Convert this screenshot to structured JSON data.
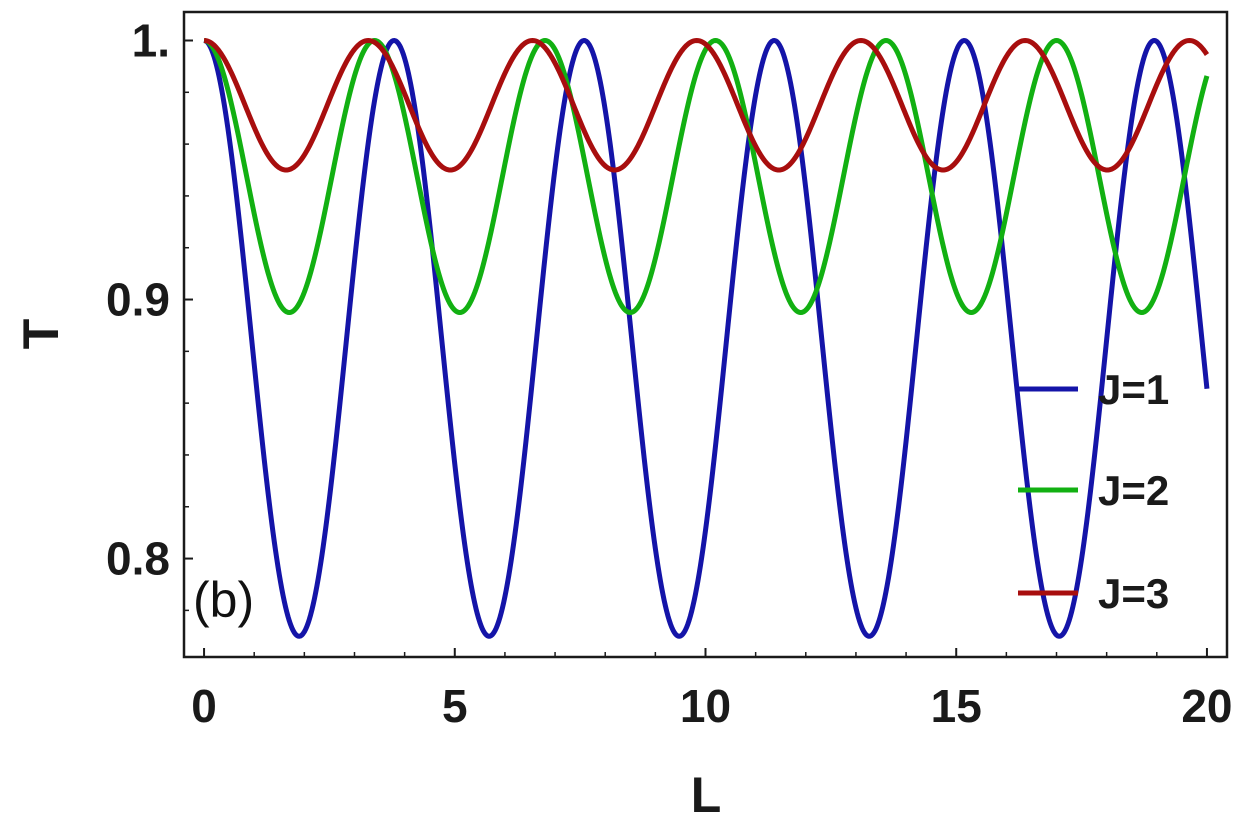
{
  "chart_data": {
    "type": "line",
    "panel_label": "(b)",
    "xlabel": "L",
    "ylabel": "T",
    "xlim": [
      -0.4,
      20.4
    ],
    "ylim": [
      0.762,
      1.011
    ],
    "x_ticks": [
      {
        "value": 0,
        "label": "0"
      },
      {
        "value": 5,
        "label": "5"
      },
      {
        "value": 10,
        "label": "10"
      },
      {
        "value": 15,
        "label": "15"
      },
      {
        "value": 20,
        "label": "20"
      }
    ],
    "y_ticks": [
      {
        "value": 0.8,
        "label": "0.8"
      },
      {
        "value": 0.9,
        "label": "0.9"
      },
      {
        "value": 1.0,
        "label": "1."
      }
    ],
    "x_range": [
      0,
      20
    ],
    "legend_position": "right",
    "series": [
      {
        "name": "J=1",
        "color": "#1414a8",
        "period": 3.79,
        "min": 0.77
      },
      {
        "name": "J=2",
        "color": "#12b012",
        "period": 3.4,
        "min": 0.895
      },
      {
        "name": "J=3",
        "color": "#a80e0e",
        "period": 3.275,
        "min": 0.95
      }
    ]
  }
}
